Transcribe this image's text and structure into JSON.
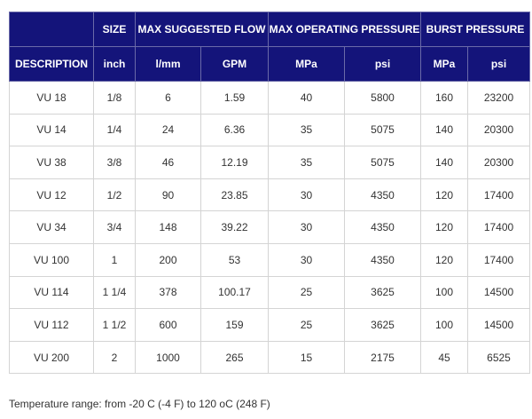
{
  "header": {
    "group_row": [
      "",
      "SIZE",
      "MAX SUGGESTED FLOW",
      "MAX OPERATING PRESSURE",
      "BURST PRESSURE"
    ],
    "units_row": [
      "DESCRIPTION",
      "inch",
      "l/mm",
      "GPM",
      "MPa",
      "psi",
      "MPa",
      "psi"
    ]
  },
  "rows": [
    [
      "VU 18",
      "1/8",
      "6",
      "1.59",
      "40",
      "5800",
      "160",
      "23200"
    ],
    [
      "VU 14",
      "1/4",
      "24",
      "6.36",
      "35",
      "5075",
      "140",
      "20300"
    ],
    [
      "VU 38",
      "3/8",
      "46",
      "12.19",
      "35",
      "5075",
      "140",
      "20300"
    ],
    [
      "VU 12",
      "1/2",
      "90",
      "23.85",
      "30",
      "4350",
      "120",
      "17400"
    ],
    [
      "VU 34",
      "3/4",
      "148",
      "39.22",
      "30",
      "4350",
      "120",
      "17400"
    ],
    [
      "VU 100",
      "1",
      "200",
      "53",
      "30",
      "4350",
      "120",
      "17400"
    ],
    [
      "VU 114",
      "1 1/4",
      "378",
      "100.17",
      "25",
      "3625",
      "100",
      "14500"
    ],
    [
      "VU 112",
      "1 1/2",
      "600",
      "159",
      "25",
      "3625",
      "100",
      "14500"
    ],
    [
      "VU 200",
      "2",
      "1000",
      "265",
      "15",
      "2175",
      "45",
      "6525"
    ]
  ],
  "footnote": "Temperature range: from -20 C (-4 F) to 120 oC (248 F)",
  "colors": {
    "header_bg": "#14147a",
    "header_text": "#ffffff",
    "grid_line": "#d4d4d4",
    "body_text": "#333333"
  }
}
